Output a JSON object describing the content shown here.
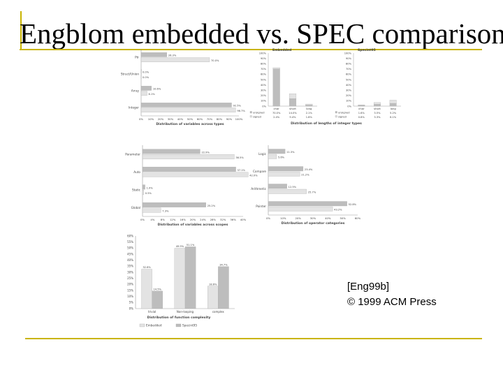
{
  "slide": {
    "title": "Engblom embedded vs. SPEC comparison",
    "citation_line1": "[Eng99b]",
    "citation_line2": "© 1999 ACM Press"
  },
  "colors": {
    "embedded": "#bdbdbd",
    "spec": "#e3e3e3",
    "accent_line": "#c9b400"
  },
  "chart_data": [
    {
      "id": "types",
      "type": "bar",
      "orientation": "horizontal",
      "title": "Distribution of variables across types",
      "categories": [
        "Ptr",
        "Struct/Union",
        "Array",
        "Integer"
      ],
      "series": [
        {
          "name": "Embedded",
          "values": [
            26.3,
            0,
            10.6,
            92.5
          ]
        },
        {
          "name": "Spec",
          "values": [
            70.0,
            0,
            6.1,
            96.7
          ]
        }
      ],
      "xlim": [
        0,
        100
      ]
    },
    {
      "id": "int-lengths",
      "type": "bar",
      "title": "Distribution of lengths of integer types",
      "panels": [
        "Embedded",
        "Specint95"
      ],
      "categories": [
        "char",
        "short",
        "long"
      ],
      "series": [
        {
          "name": "unsigned",
          "values_embedded": [
            70.0,
            14.0,
            2.1
          ],
          "values_spec": [
            1.6,
            3.5,
            5.2
          ]
        },
        {
          "name": "signed",
          "values_embedded": [
            2.4,
            9.4,
            1.8
          ],
          "values_spec": [
            0.8,
            3.3,
            6.1
          ]
        }
      ],
      "ylim": [
        0,
        100
      ]
    },
    {
      "id": "scopes",
      "type": "bar",
      "orientation": "horizontal",
      "title": "Distribution of variables across scopes",
      "categories": [
        "Parameter",
        "Auto",
        "Static",
        "Global"
      ],
      "series": [
        {
          "name": "Embedded",
          "values": [
            22.9,
            37.1,
            1.0,
            25.2
          ]
        },
        {
          "name": "Spec",
          "values": [
            36.5,
            42.0,
            0.5,
            7.3
          ]
        }
      ],
      "xlim": [
        0,
        40
      ]
    },
    {
      "id": "operators",
      "type": "bar",
      "orientation": "horizontal",
      "title": "Distribution of operator categories",
      "categories": [
        "Logic",
        "Compare",
        "Arithmetic",
        "Pointer"
      ],
      "series": [
        {
          "name": "Embedded",
          "values": [
            11.3,
            23.4,
            12.5,
            52.8
          ]
        },
        {
          "name": "Spec",
          "values": [
            5.6,
            21.2,
            25.7,
            43.2
          ]
        }
      ],
      "xlim": [
        0,
        60
      ],
      "ticks": [
        "0%",
        "10%",
        "20%",
        "30%",
        "40%",
        "50%",
        "60%"
      ]
    },
    {
      "id": "complexity",
      "type": "bar",
      "title": "Distribution of function complexity",
      "categories": [
        "trivial",
        "Non-looping",
        "complex"
      ],
      "series": [
        {
          "name": "Embedded",
          "values": [
            32.6,
            49.9,
            18.6
          ]
        },
        {
          "name": "Specint95",
          "values": [
            14.5,
            51.1,
            34.7
          ]
        }
      ],
      "ylim": [
        0,
        60
      ],
      "yticks": [
        "0%",
        "5%",
        "10%",
        "15%",
        "20%",
        "25%",
        "30%",
        "35%",
        "40%",
        "45%",
        "50%",
        "55%",
        "60%"
      ],
      "legend": "bottom"
    }
  ]
}
